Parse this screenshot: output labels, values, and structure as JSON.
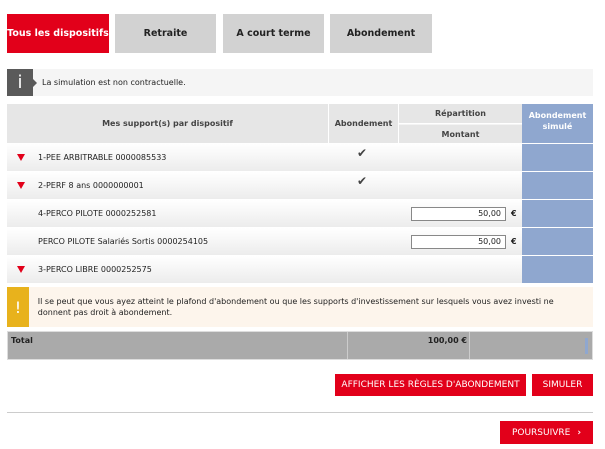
{
  "tabs": [
    {
      "label": "Tous les dispositifs",
      "active": true
    },
    {
      "label": "Retraite"
    },
    {
      "label": "A court terme"
    },
    {
      "label": "Abondement"
    }
  ],
  "info": {
    "icon": "info-icon",
    "text": "La simulation est non contractuelle."
  },
  "table": {
    "headers": {
      "supports": "Mes support(s) par dispositif",
      "abondement": "Abondement",
      "repartition": "Répartition",
      "montant": "Montant",
      "simule": "Abondement simulé"
    },
    "rows": [
      {
        "label": "1-PEE ARBITRABLE 0000085533",
        "expandable": true,
        "check": true
      },
      {
        "label": "2-PERF 8 ans 0000000001",
        "expandable": true,
        "check": true
      },
      {
        "label": "4-PERCO PILOTE 0000252581",
        "value": "50,00",
        "currency": "€"
      },
      {
        "label": "PERCO PILOTE Salariés Sortis 0000254105",
        "value": "50,00",
        "currency": "€"
      },
      {
        "label": "3-PERCO LIBRE 0000252575",
        "expandable": true
      }
    ]
  },
  "warning": {
    "icon": "exclamation-icon",
    "text": "Il se peut que vous ayez atteint le plafond d'abondement ou que les supports d'investissement sur lesquels vous avez investi ne donnent pas droit à abondement."
  },
  "total": {
    "label": "Total",
    "value": "100,00 €"
  },
  "buttons": {
    "rules": "AFFICHER LES RÈGLES D'ABONDEMENT",
    "simulate": "SIMULER",
    "continue": "POURSUIVRE"
  },
  "colors": {
    "accent": "#e2001a",
    "simulated_column": "#8fa7cf",
    "warning": "#e8b21c"
  }
}
